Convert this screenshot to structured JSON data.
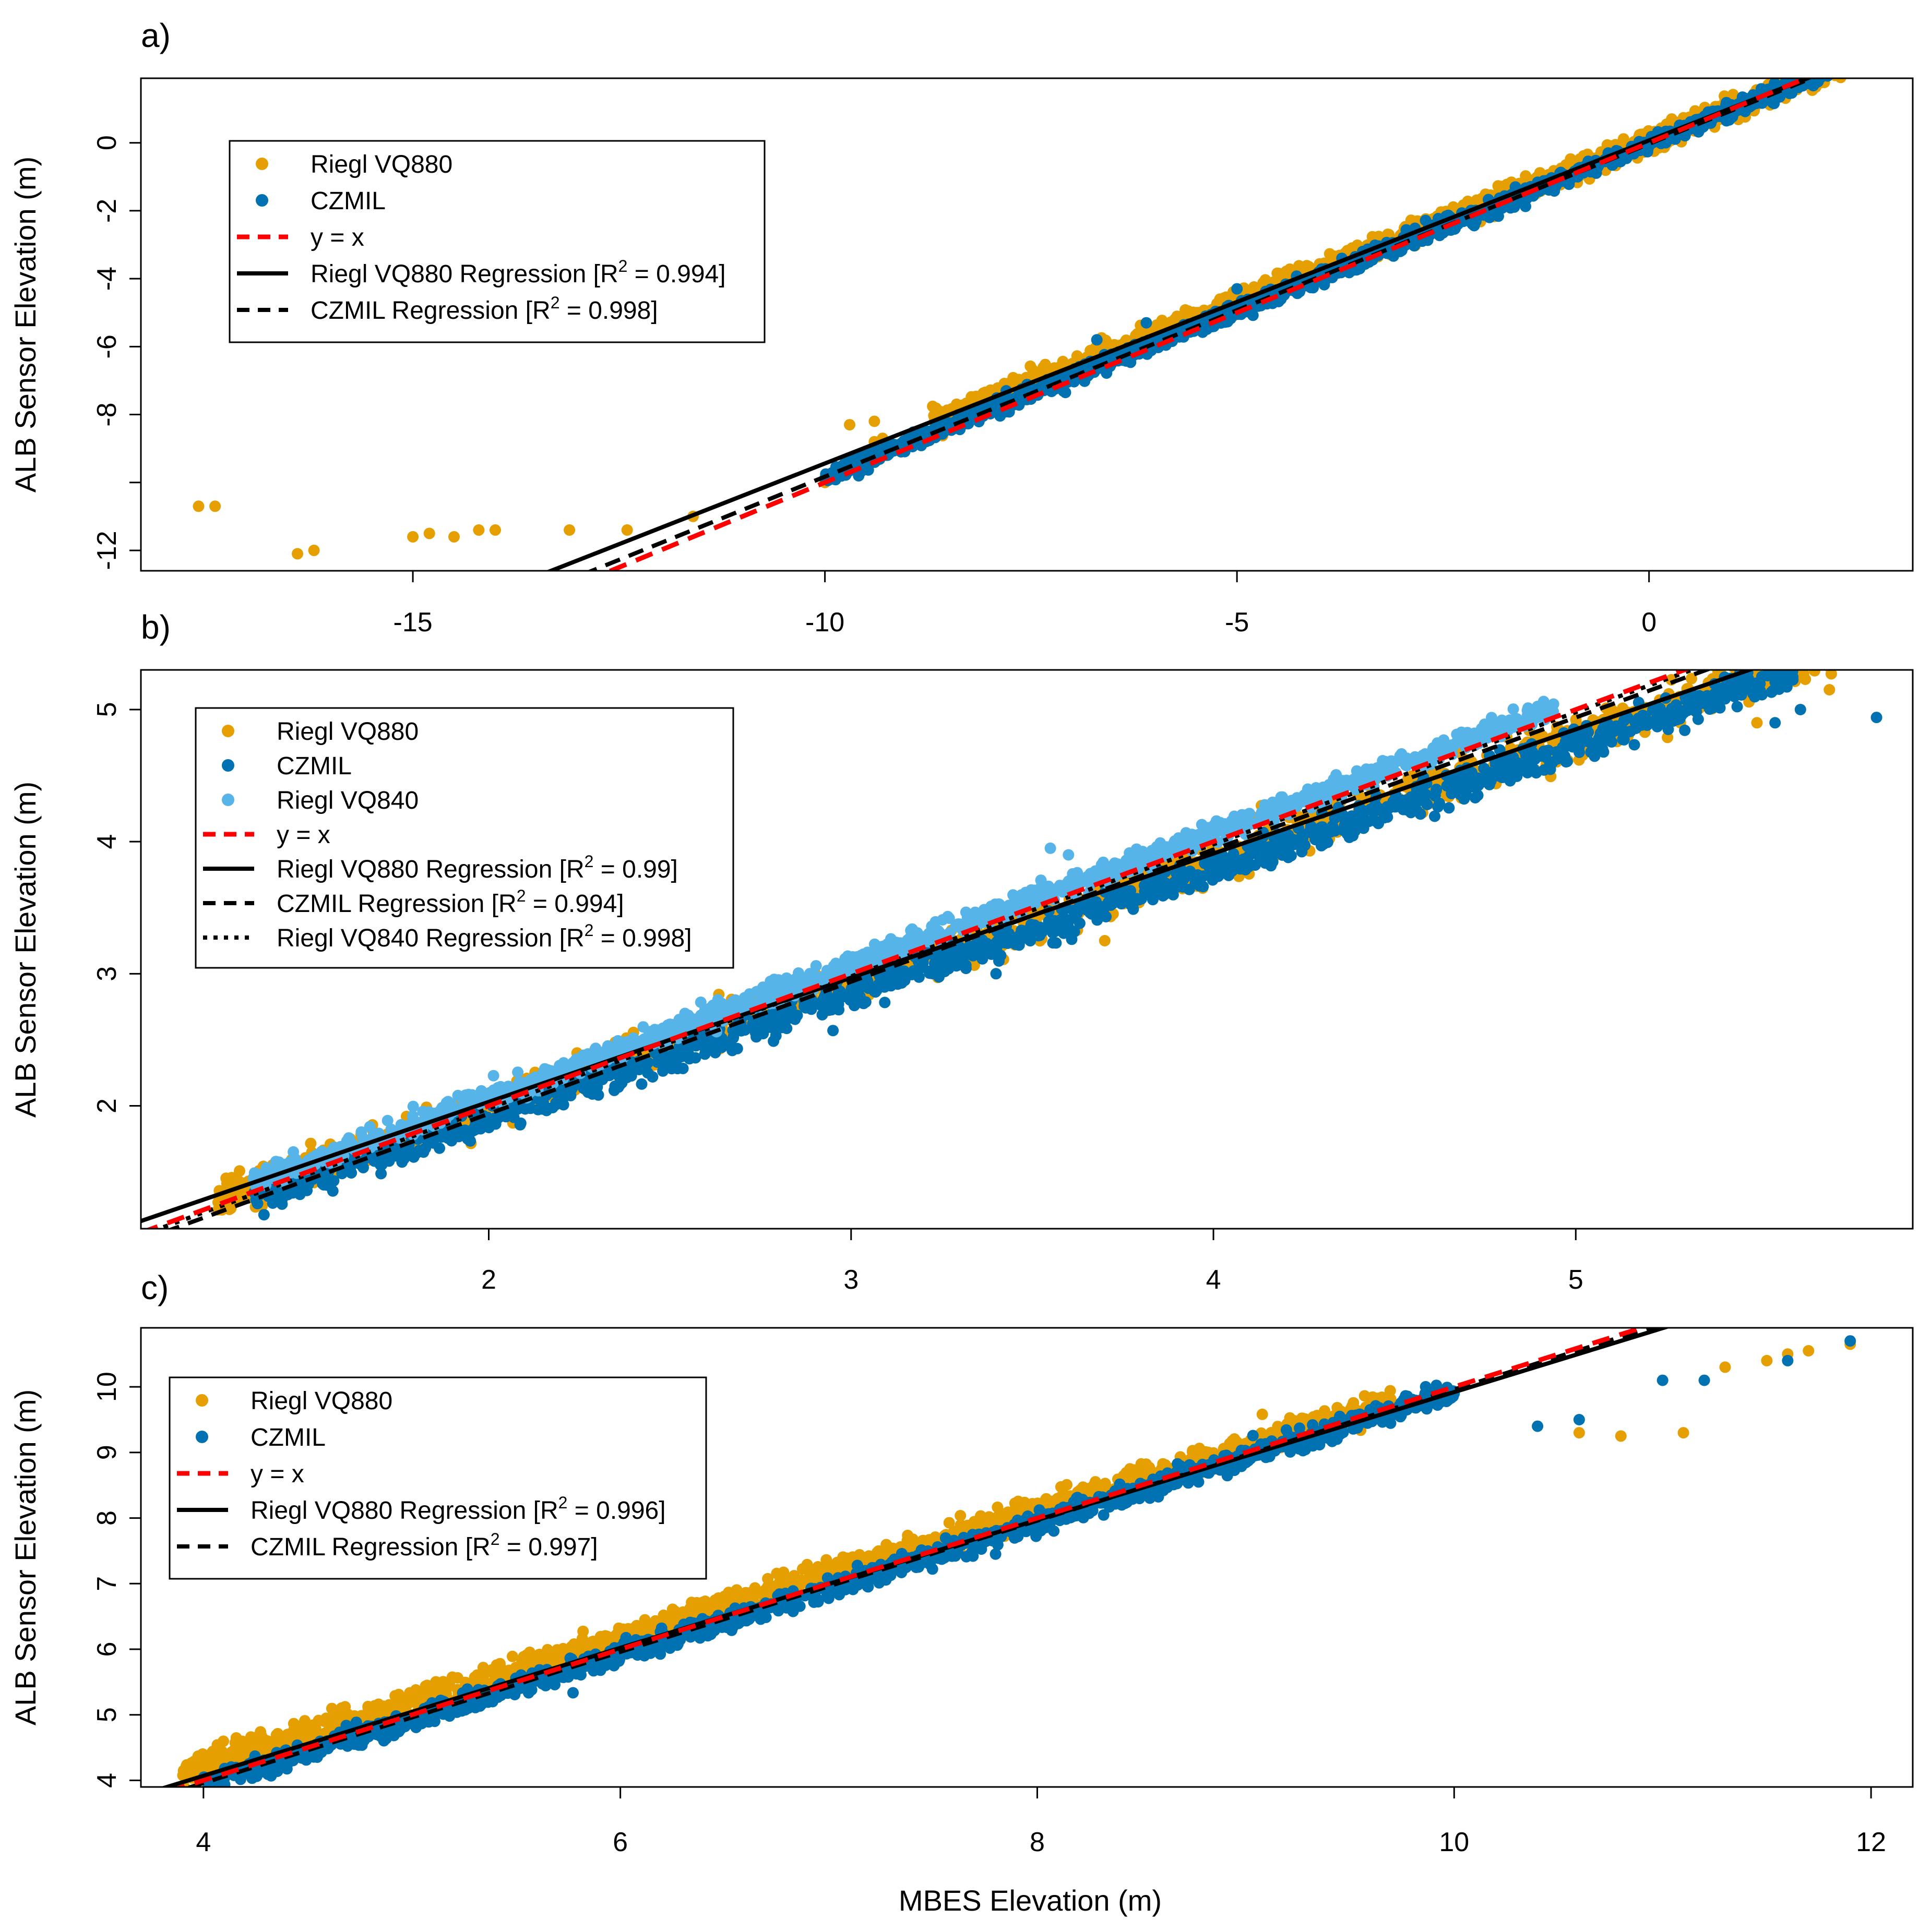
{
  "figure": {
    "xlabel": "MBES Elevation (m)",
    "ylabel": "ALB Sensor Elevation (m)"
  },
  "colors": {
    "riegl_vq880": "#E69F00",
    "czmil": "#0072B2",
    "riegl_vq840": "#56B4E9",
    "identity": "#FF0000",
    "regression": "#000000"
  },
  "chart_data": [
    {
      "panel": "a)",
      "type": "scatter",
      "xlabel": "",
      "ylabel": "ALB Sensor Elevation (m)",
      "xlim": [
        -18.3,
        3.2
      ],
      "ylim": [
        -12.6,
        1.9
      ],
      "xticks": [
        -15,
        -10,
        -5,
        0
      ],
      "yticks": [
        -12,
        -10,
        -8,
        -6,
        -4,
        -2,
        0
      ],
      "ytick_labels": [
        "-12",
        "",
        "-8",
        "-6",
        "-4",
        "-2",
        "0"
      ],
      "legend": {
        "position": "top-left",
        "entries": [
          {
            "label": "Riegl VQ880",
            "kind": "point",
            "series": "riegl_vq880"
          },
          {
            "label": "CZMIL",
            "kind": "point",
            "series": "czmil"
          },
          {
            "label": "y = x",
            "kind": "line",
            "style": "dashed-red"
          },
          {
            "label": "Riegl VQ880 Regression [R",
            "sup": "2",
            "label_tail": " = 0.994]",
            "kind": "line",
            "style": "solid"
          },
          {
            "label": "CZMIL Regression [R",
            "sup": "2",
            "label_tail": " = 0.998]",
            "kind": "line",
            "style": "dashed"
          }
        ]
      },
      "series": [
        {
          "name": "Riegl VQ880",
          "color_key": "riegl_vq880",
          "cloud": {
            "x_range": [
              -8.7,
              2.6
            ],
            "slope": 0.95,
            "intercept": 0.07,
            "spread": 0.35,
            "count": 1400
          },
          "outliers": [
            [
              -17.6,
              -10.7
            ],
            [
              -17.4,
              -10.7
            ],
            [
              -16.4,
              -12.1
            ],
            [
              -16.2,
              -12.0
            ],
            [
              -15.0,
              -11.6
            ],
            [
              -14.8,
              -11.5
            ],
            [
              -14.5,
              -11.6
            ],
            [
              -14.2,
              -11.4
            ],
            [
              -14.0,
              -11.4
            ],
            [
              -13.1,
              -11.4
            ],
            [
              -12.4,
              -11.4
            ],
            [
              -11.6,
              -11.0
            ],
            [
              -10.0,
              -10.0
            ],
            [
              -9.7,
              -8.3
            ],
            [
              -9.4,
              -8.2
            ],
            [
              -9.4,
              -8.8
            ],
            [
              -8.4,
              -7.9
            ],
            [
              -9.3,
              -8.7
            ]
          ]
        },
        {
          "name": "CZMIL",
          "color_key": "czmil",
          "cloud": {
            "x_range": [
              -10.0,
              2.3
            ],
            "slope": 0.98,
            "intercept": -0.03,
            "spread": 0.25,
            "count": 1500
          },
          "outliers": [
            [
              -6.7,
              -5.8
            ],
            [
              -5.0,
              -4.3
            ],
            [
              -7.8,
              -7.3
            ],
            [
              -6.1,
              -5.3
            ]
          ]
        }
      ],
      "lines": [
        {
          "name": "y = x",
          "slope": 1.0,
          "intercept": 0.0,
          "style": "dashed-red"
        },
        {
          "name": "Riegl VQ880 Regression",
          "slope": 0.951,
          "intercept": 0.07,
          "style": "solid"
        },
        {
          "name": "CZMIL Regression",
          "slope": 0.98,
          "intercept": -0.03,
          "style": "dashed"
        }
      ]
    },
    {
      "panel": "b)",
      "type": "scatter",
      "xlabel": "",
      "ylabel": "ALB Sensor Elevation (m)",
      "xlim": [
        1.04,
        5.93
      ],
      "ylim": [
        1.07,
        5.3
      ],
      "xticks": [
        2,
        3,
        4,
        5
      ],
      "yticks": [
        2,
        3,
        4,
        5
      ],
      "ytick_labels": [
        "2",
        "3",
        "4",
        "5"
      ],
      "legend": {
        "position": "top-left",
        "entries": [
          {
            "label": "Riegl VQ880",
            "kind": "point",
            "series": "riegl_vq880"
          },
          {
            "label": "CZMIL",
            "kind": "point",
            "series": "czmil"
          },
          {
            "label": "Riegl VQ840",
            "kind": "point",
            "series": "riegl_vq840"
          },
          {
            "label": "y = x",
            "kind": "line",
            "style": "dashed-red"
          },
          {
            "label": "Riegl VQ880 Regression [R",
            "sup": "2",
            "label_tail": " = 0.99]",
            "kind": "line",
            "style": "solid"
          },
          {
            "label": "CZMIL Regression [R",
            "sup": "2",
            "label_tail": " = 0.994]",
            "kind": "line",
            "style": "dashed"
          },
          {
            "label": "Riegl VQ840 Regression [R",
            "sup": "2",
            "label_tail": " = 0.998]",
            "kind": "line",
            "style": "dotted"
          }
        ]
      },
      "series": [
        {
          "name": "Riegl VQ880",
          "color_key": "riegl_vq880",
          "cloud": {
            "x_range": [
              1.25,
              5.75
            ],
            "slope": 0.93,
            "intercept": 0.14,
            "spread": 0.17,
            "count": 1400
          },
          "outliers": [
            [
              3.7,
              3.25
            ],
            [
              5.7,
              5.15
            ],
            [
              4.9,
              4.7
            ],
            [
              5.5,
              4.9
            ]
          ]
        },
        {
          "name": "CZMIL",
          "color_key": "czmil",
          "cloud": {
            "x_range": [
              1.35,
              5.6
            ],
            "slope": 0.94,
            "intercept": 0.03,
            "spread": 0.13,
            "count": 1300
          },
          "outliers": [
            [
              2.8,
              2.6
            ],
            [
              2.95,
              2.57
            ],
            [
              3.4,
              3.0
            ],
            [
              5.83,
              4.94
            ],
            [
              5.62,
              5.0
            ],
            [
              5.55,
              4.9
            ]
          ]
        },
        {
          "name": "Riegl VQ840",
          "color_key": "riegl_vq840",
          "cloud": {
            "x_range": [
              1.35,
              4.95
            ],
            "slope": 1.0,
            "intercept": 0.07,
            "spread": 0.09,
            "count": 1300
          },
          "outliers": [
            [
              3.55,
              3.95
            ],
            [
              3.6,
              3.9
            ]
          ]
        }
      ],
      "lines": [
        {
          "name": "y = x",
          "slope": 1.0,
          "intercept": 0.0,
          "style": "dashed-red"
        },
        {
          "name": "Riegl VQ880 Regression",
          "slope": 0.94,
          "intercept": 0.15,
          "style": "solid"
        },
        {
          "name": "CZMIL Regression",
          "slope": 1.0,
          "intercept": -0.06,
          "style": "dashed"
        },
        {
          "name": "Riegl VQ840 Regression",
          "slope": 1.0,
          "intercept": -0.02,
          "style": "dotted"
        }
      ]
    },
    {
      "panel": "c)",
      "type": "scatter",
      "xlabel": "MBES Elevation (m)",
      "ylabel": "ALB Sensor Elevation (m)",
      "xlim": [
        3.7,
        12.2
      ],
      "ylim": [
        3.9,
        10.9
      ],
      "xticks": [
        4,
        6,
        8,
        10,
        12
      ],
      "yticks": [
        4,
        5,
        6,
        7,
        8,
        9,
        10
      ],
      "ytick_labels": [
        "4",
        "5",
        "6",
        "7",
        "8",
        "9",
        "10"
      ],
      "legend": {
        "position": "top-left",
        "entries": [
          {
            "label": "Riegl VQ880",
            "kind": "point",
            "series": "riegl_vq880"
          },
          {
            "label": "CZMIL",
            "kind": "point",
            "series": "czmil"
          },
          {
            "label": "y = x",
            "kind": "line",
            "style": "dashed-red"
          },
          {
            "label": "Riegl VQ880 Regression [R",
            "sup": "2",
            "label_tail": " = 0.996]",
            "kind": "line",
            "style": "solid"
          },
          {
            "label": "CZMIL Regression [R",
            "sup": "2",
            "label_tail": " = 0.997]",
            "kind": "line",
            "style": "dashed"
          }
        ]
      },
      "series": [
        {
          "name": "Riegl VQ880",
          "color_key": "riegl_vq880",
          "cloud": {
            "x_range": [
              3.9,
              9.7
            ],
            "slope": 0.97,
            "intercept": 0.35,
            "spread": 0.22,
            "count": 1500
          },
          "outliers": [
            [
              10.6,
              9.3
            ],
            [
              10.8,
              9.25
            ],
            [
              11.1,
              9.3
            ],
            [
              11.3,
              10.3
            ],
            [
              11.5,
              10.4
            ],
            [
              11.7,
              10.55
            ],
            [
              11.9,
              10.65
            ],
            [
              11.6,
              10.5
            ]
          ]
        },
        {
          "name": "CZMIL",
          "color_key": "czmil",
          "cloud": {
            "x_range": [
              4.0,
              10.0
            ],
            "slope": 1.0,
            "intercept": -0.07,
            "spread": 0.17,
            "count": 1400
          },
          "outliers": [
            [
              7.8,
              7.45
            ],
            [
              10.6,
              9.5
            ],
            [
              11.0,
              10.1
            ],
            [
              11.2,
              10.1
            ],
            [
              11.6,
              10.4
            ],
            [
              11.9,
              10.7
            ],
            [
              10.4,
              9.4
            ]
          ]
        }
      ],
      "lines": [
        {
          "name": "y = x",
          "slope": 1.0,
          "intercept": 0.0,
          "style": "dashed-red"
        },
        {
          "name": "Riegl VQ880 Regression",
          "slope": 0.975,
          "intercept": 0.17,
          "style": "solid"
        },
        {
          "name": "CZMIL Regression",
          "slope": 1.0,
          "intercept": -0.04,
          "style": "dashed"
        }
      ]
    }
  ]
}
